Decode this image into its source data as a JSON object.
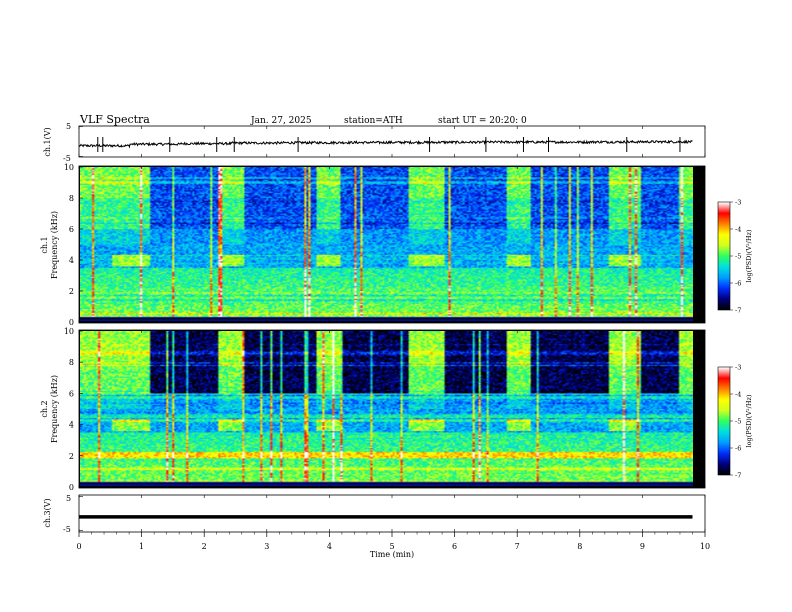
{
  "header": {
    "title": "VLF  Spectra",
    "date": "Jan. 27, 2025",
    "station": "station=ATH",
    "start": "start  UT  =   20:20: 0"
  },
  "chart_data": [
    {
      "type": "line",
      "name": "ch1-waveform",
      "ylabel": "ch.1(V)",
      "ylim": [
        -5,
        5
      ],
      "yticks": [
        "5",
        "-5"
      ],
      "xlim": [
        0,
        9.8
      ],
      "baseline": [
        -1.4,
        -0.9,
        -0.7,
        -0.5,
        -0.4,
        -0.35,
        -0.3,
        -0.25,
        -0.2,
        -0.2,
        -0.15,
        -0.1
      ],
      "noise_amplitude": 0.4,
      "spikes": [
        0.3,
        0.38,
        1.45,
        2.2,
        2.48,
        3.5,
        5.6,
        6.5,
        7.1,
        7.5,
        8.75,
        9.6
      ]
    },
    {
      "type": "heatmap",
      "name": "ch1-spectrogram",
      "ylabel_top": "ch.1",
      "ylabel": "Frequency  (kHz)",
      "ylim": [
        0,
        10
      ],
      "yticks": [
        "0",
        "2",
        "4",
        "6",
        "8",
        "10"
      ],
      "xlim": [
        0,
        9.8
      ],
      "colorbar": {
        "label": "log(PSD)(V²/Hz)",
        "range": [
          -7,
          -3
        ],
        "ticks": [
          "-3",
          "-4",
          "-5",
          "-6",
          "-7"
        ],
        "colors": [
          "#000000",
          "#000080",
          "#0030ff",
          "#00a0ff",
          "#00e0e0",
          "#30ff60",
          "#d0ff20",
          "#ffff00",
          "#ff8000",
          "#ff0000",
          "#ffffff"
        ]
      },
      "quiet_intervals_min": [
        [
          1.1,
          2.2
        ],
        [
          2.6,
          3.75
        ],
        [
          4.15,
          5.25
        ],
        [
          5.8,
          6.8
        ],
        [
          7.2,
          8.45
        ],
        [
          8.95,
          9.55
        ]
      ],
      "transmitter_blocks_min": [
        [
          0.5,
          1.1
        ],
        [
          2.2,
          2.6
        ],
        [
          3.75,
          4.15
        ],
        [
          5.25,
          5.8
        ],
        [
          6.8,
          7.2
        ],
        [
          8.45,
          8.95
        ]
      ],
      "transmitter_band_khz": [
        3.6,
        4.4
      ]
    },
    {
      "type": "heatmap",
      "name": "ch2-spectrogram",
      "ylabel_top": "ch.2",
      "ylabel": "Frequency  (kHz)",
      "ylim": [
        0,
        10
      ],
      "yticks": [
        "0",
        "2",
        "4",
        "6",
        "8",
        "10"
      ],
      "xlim": [
        0,
        9.8
      ],
      "colorbar": {
        "label": "log(PSD)(V²/Hz)",
        "range": [
          -7,
          -3
        ],
        "ticks": [
          "-3",
          "-4",
          "-5",
          "-6",
          "-7"
        ],
        "colors": [
          "#000000",
          "#000080",
          "#0030ff",
          "#00a0ff",
          "#00e0e0",
          "#30ff60",
          "#d0ff20",
          "#ffff00",
          "#ff8000",
          "#ff0000",
          "#ffffff"
        ]
      },
      "quiet_intervals_min": [
        [
          1.1,
          2.2
        ],
        [
          2.6,
          3.75
        ],
        [
          4.15,
          5.25
        ],
        [
          5.8,
          6.8
        ],
        [
          7.2,
          8.45
        ],
        [
          8.95,
          9.55
        ]
      ],
      "transmitter_blocks_min": [
        [
          0.5,
          1.1
        ],
        [
          2.2,
          2.6
        ],
        [
          3.75,
          4.15
        ],
        [
          5.25,
          5.8
        ],
        [
          6.8,
          7.2
        ],
        [
          8.45,
          8.95
        ]
      ],
      "transmitter_band_khz": [
        3.6,
        4.4
      ],
      "hot_band_khz": [
        1.9,
        2.3
      ]
    },
    {
      "type": "line",
      "name": "ch3-waveform",
      "ylabel": "ch.3(V)",
      "ylim": [
        -5,
        5
      ],
      "yticks": [
        "5",
        "-5"
      ],
      "xlim": [
        0,
        9.8
      ],
      "level": -1.0
    }
  ],
  "xaxis": {
    "label": "Time  (min)",
    "range": [
      0,
      10
    ],
    "ticks": [
      "0",
      "1",
      "2",
      "3",
      "4",
      "5",
      "6",
      "7",
      "8",
      "9",
      "10"
    ]
  }
}
